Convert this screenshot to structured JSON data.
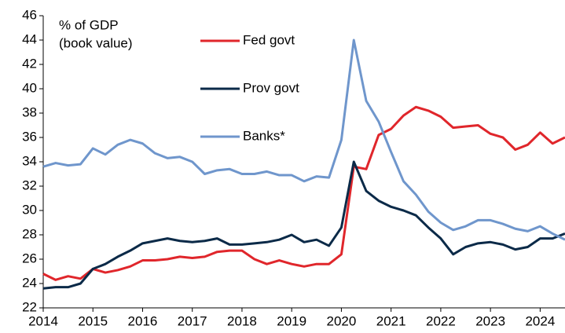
{
  "chart_data": {
    "type": "line",
    "annotations": [
      "% of GDP",
      "(book value)"
    ],
    "xlim": [
      2014,
      2024.5
    ],
    "ylim": [
      22,
      46
    ],
    "xticks": [
      2014,
      2015,
      2016,
      2017,
      2018,
      2019,
      2020,
      2021,
      2022,
      2023,
      2024
    ],
    "yticks": [
      22,
      24,
      26,
      28,
      30,
      32,
      34,
      36,
      38,
      40,
      42,
      44,
      46
    ],
    "x": [
      2014,
      2014.25,
      2014.5,
      2014.75,
      2015,
      2015.25,
      2015.5,
      2015.75,
      2016,
      2016.25,
      2016.5,
      2016.75,
      2017,
      2017.25,
      2017.5,
      2017.75,
      2018,
      2018.25,
      2018.5,
      2018.75,
      2019,
      2019.25,
      2019.5,
      2019.75,
      2020,
      2020.25,
      2020.5,
      2020.75,
      2021,
      2021.25,
      2021.5,
      2021.75,
      2022,
      2022.25,
      2022.5,
      2022.75,
      2023,
      2023.25,
      2023.5,
      2023.75,
      2024,
      2024.25,
      2024.5
    ],
    "series": [
      {
        "name": "Fed govt",
        "color": "#e0262b",
        "values": [
          24.8,
          24.3,
          24.6,
          24.4,
          25.2,
          24.9,
          25.1,
          25.4,
          25.9,
          25.9,
          26.0,
          26.2,
          26.1,
          26.2,
          26.6,
          26.7,
          26.7,
          26.0,
          25.6,
          25.9,
          25.6,
          25.4,
          25.6,
          25.6,
          26.4,
          33.6,
          33.4,
          36.2,
          36.7,
          37.8,
          38.5,
          38.2,
          37.7,
          36.8,
          36.9,
          37.0,
          36.3,
          36.0,
          35.0,
          35.4,
          36.4,
          35.5,
          36.0
        ]
      },
      {
        "name": "Prov govt",
        "color": "#0b2a48",
        "values": [
          23.6,
          23.7,
          23.7,
          24.0,
          25.2,
          25.6,
          26.2,
          26.7,
          27.3,
          27.5,
          27.7,
          27.5,
          27.4,
          27.5,
          27.7,
          27.2,
          27.2,
          27.3,
          27.4,
          27.6,
          28.0,
          27.4,
          27.6,
          27.1,
          28.6,
          34.0,
          31.6,
          30.8,
          30.3,
          30.0,
          29.6,
          28.6,
          27.7,
          26.4,
          27.0,
          27.3,
          27.4,
          27.2,
          26.8,
          27.0,
          27.7,
          27.7,
          28.1
        ]
      },
      {
        "name": "Banks*",
        "color": "#6f96cc",
        "values": [
          33.6,
          33.9,
          33.7,
          33.8,
          35.1,
          34.6,
          35.4,
          35.8,
          35.5,
          34.7,
          34.3,
          34.4,
          34.0,
          33.0,
          33.3,
          33.4,
          33.0,
          33.0,
          33.2,
          32.9,
          32.9,
          32.4,
          32.8,
          32.7,
          35.8,
          44.0,
          39.0,
          37.3,
          34.8,
          32.4,
          31.3,
          29.9,
          29.0,
          28.4,
          28.7,
          29.2,
          29.2,
          28.9,
          28.5,
          28.3,
          28.7,
          28.1,
          27.6
        ]
      }
    ]
  }
}
